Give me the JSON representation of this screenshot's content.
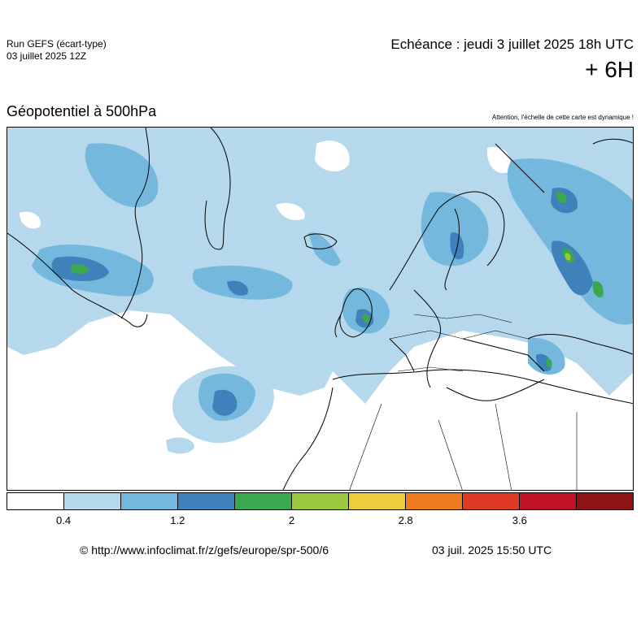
{
  "header": {
    "run_name": "Run GEFS (écart-type)",
    "run_date": "03 juillet 2025 12Z",
    "valid_time": "Echéance : jeudi 3 juillet 2025 18h UTC",
    "lead_time": "+ 6H"
  },
  "map": {
    "title": "Géopotentiel à 500hPa",
    "scale_note": "Attention, l'échelle de cette carte est dynamique !",
    "background_color": "#ffffff",
    "coastline_color": "#000000"
  },
  "colorbar": {
    "colors": [
      "#ffffff",
      "#b5d8ec",
      "#74b8de",
      "#3f82bb",
      "#3aa84f",
      "#9ac83f",
      "#eccd3e",
      "#ee7d22",
      "#de3a26",
      "#c21226",
      "#8d1414"
    ],
    "labels": [
      "0.4",
      "1.2",
      "2",
      "2.8",
      "3.6"
    ],
    "label_values": [
      0.4,
      1.2,
      2,
      2.8,
      3.6
    ],
    "min": 0,
    "step": 0.4
  },
  "footer": {
    "source_url": "© http://www.infoclimat.fr/z/gefs/europe/spr-500/6",
    "generated": "03 juil. 2025 15:50 UTC"
  }
}
